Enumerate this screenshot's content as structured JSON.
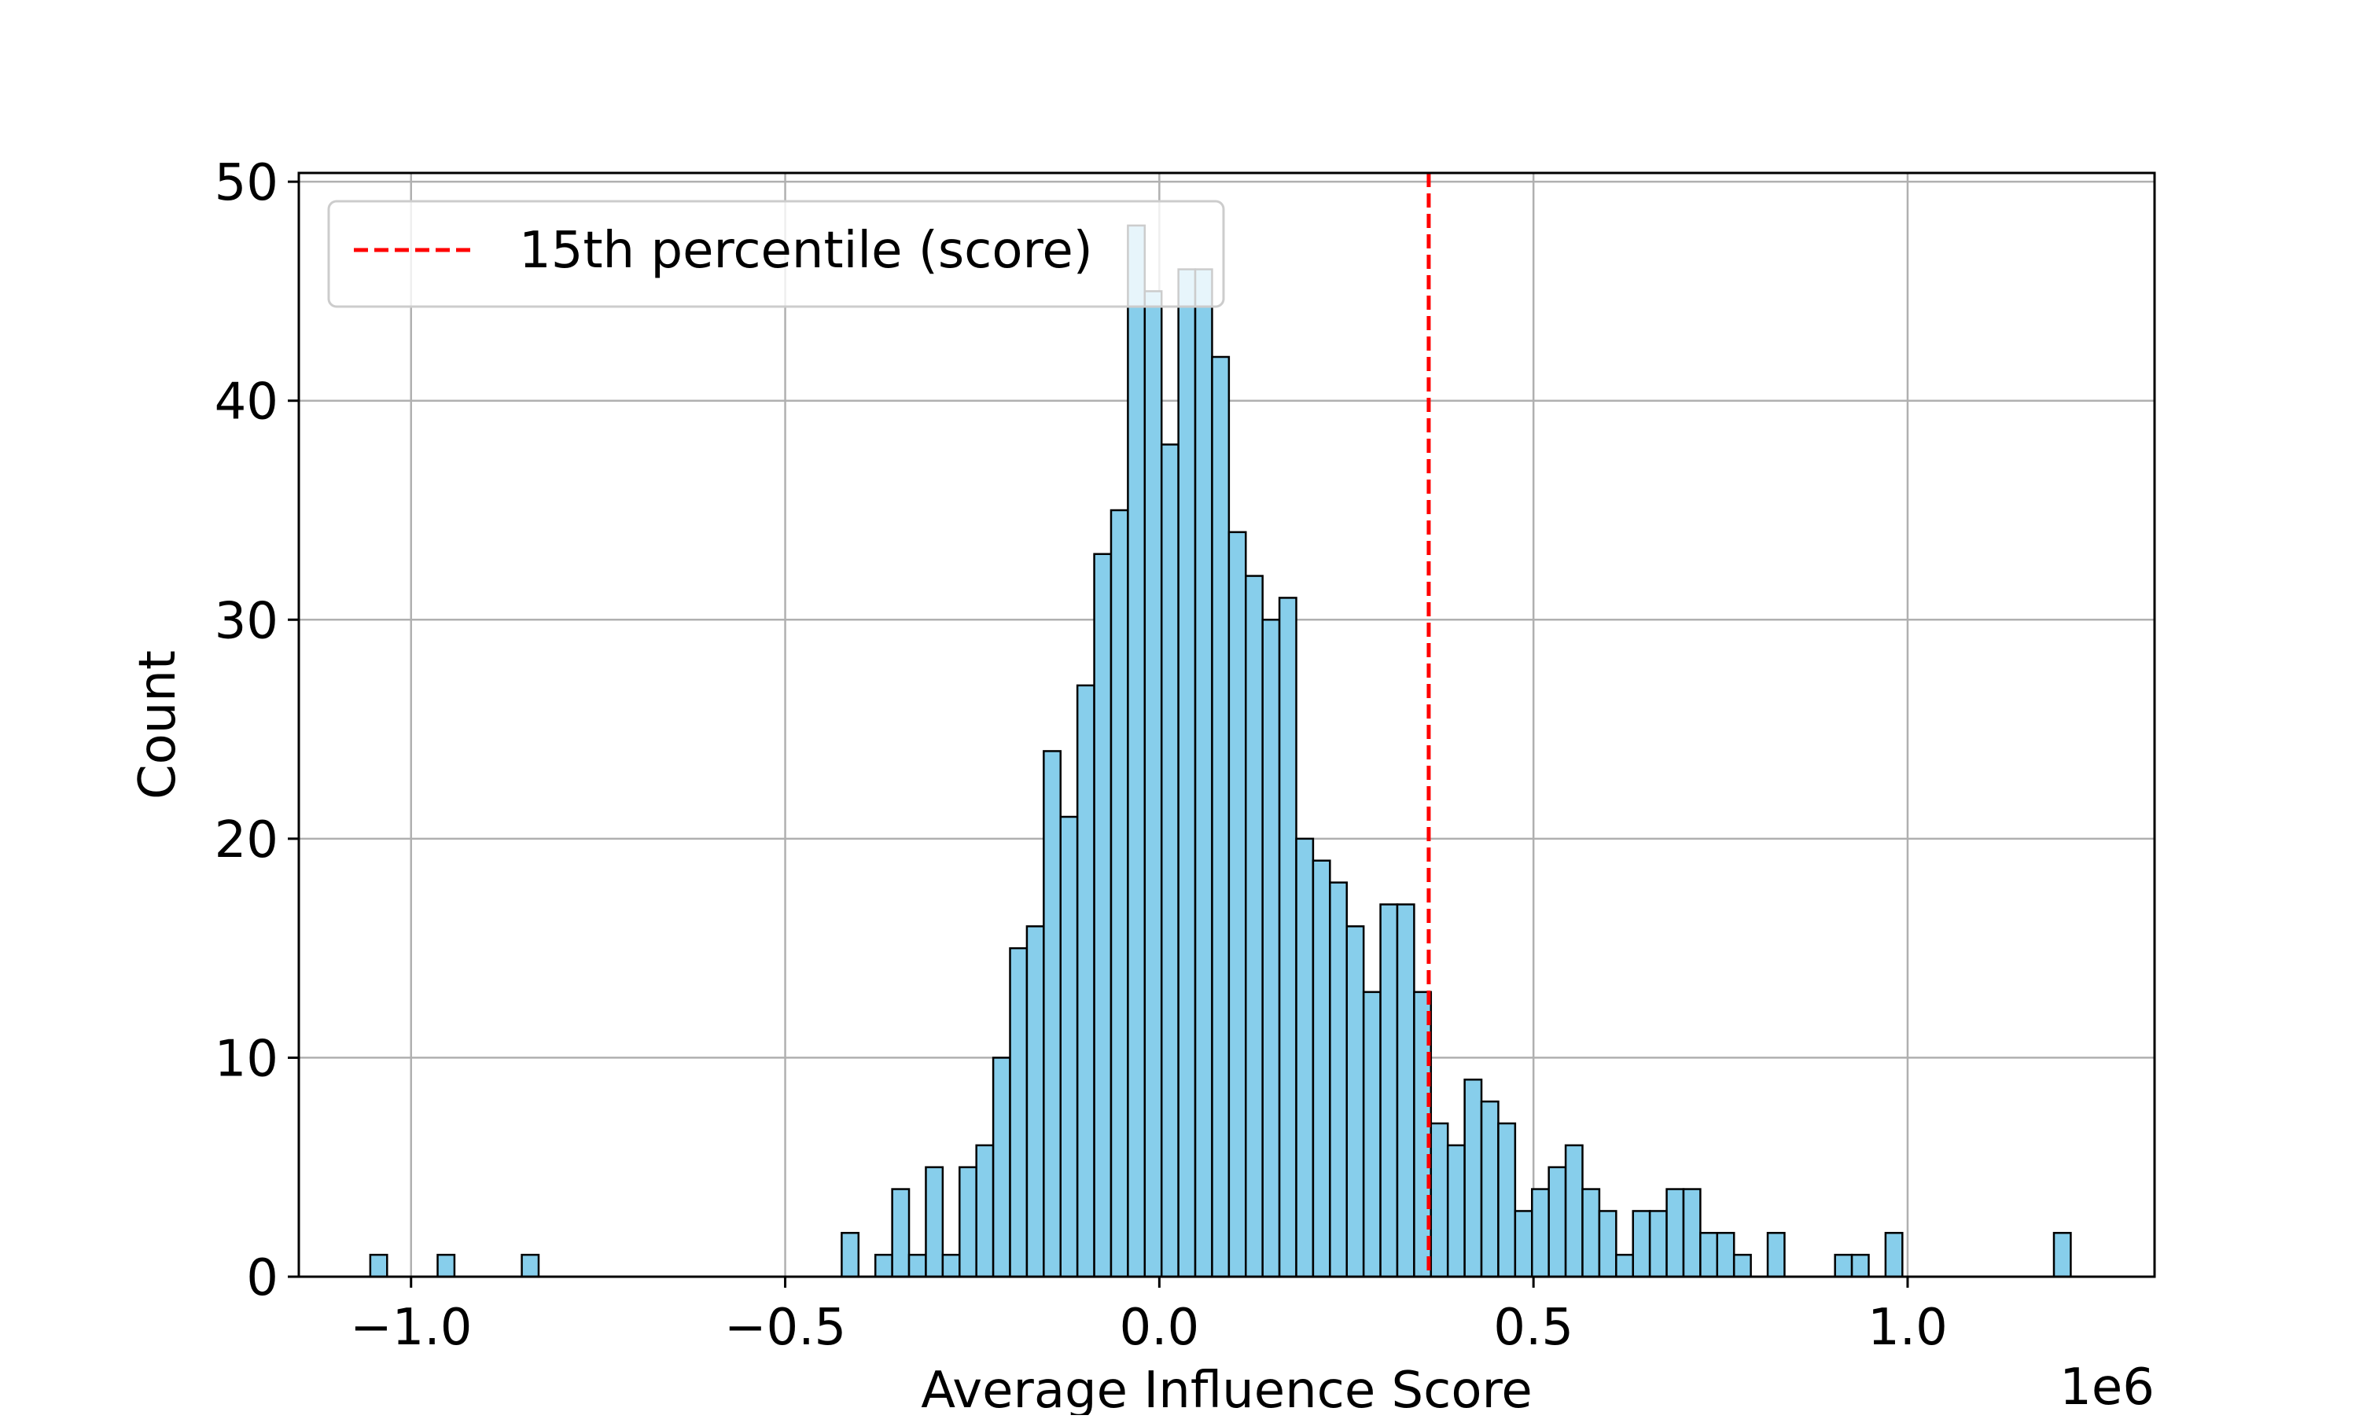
{
  "chart_data": {
    "type": "bar",
    "title": "",
    "xlabel": "Average Influence Score",
    "ylabel": "Count",
    "x_offset_label": "1e6",
    "xlim": [
      -1.15,
      1.33
    ],
    "ylim": [
      0,
      50.4
    ],
    "grid": true,
    "legend_placement": "top-left",
    "colors": {
      "bar_fill": "#87CEEB",
      "bar_edge": "#000000",
      "percentile_line": "#FF0000",
      "grid": "#B0B0B0"
    },
    "x_ticks": [
      {
        "value": -1.0,
        "label": "−1.0"
      },
      {
        "value": -0.5,
        "label": "−0.5"
      },
      {
        "value": 0.0,
        "label": "0.0"
      },
      {
        "value": 0.5,
        "label": "0.5"
      },
      {
        "value": 1.0,
        "label": "1.0"
      }
    ],
    "y_ticks": [
      {
        "value": 0,
        "label": "0"
      },
      {
        "value": 10,
        "label": "10"
      },
      {
        "value": 20,
        "label": "20"
      },
      {
        "value": 30,
        "label": "30"
      },
      {
        "value": 40,
        "label": "40"
      },
      {
        "value": 50,
        "label": "50"
      }
    ],
    "bin_start": -1.0545,
    "bin_width": 0.0225,
    "counts": [
      1,
      0,
      0,
      0,
      1,
      0,
      0,
      0,
      0,
      1,
      0,
      0,
      0,
      0,
      0,
      0,
      0,
      0,
      0,
      0,
      0,
      0,
      0,
      0,
      0,
      0,
      0,
      0,
      2,
      0,
      1,
      4,
      1,
      5,
      1,
      5,
      6,
      10,
      15,
      16,
      24,
      21,
      27,
      33,
      35,
      48,
      45,
      38,
      46,
      46,
      42,
      34,
      32,
      30,
      31,
      20,
      19,
      18,
      16,
      13,
      17,
      17,
      13,
      7,
      6,
      9,
      8,
      7,
      3,
      4,
      5,
      6,
      4,
      3,
      1,
      3,
      3,
      4,
      4,
      2,
      2,
      1,
      0,
      2,
      0,
      0,
      0,
      1,
      1,
      0,
      2,
      0,
      0,
      0,
      0,
      0,
      0,
      0,
      0,
      0,
      2
    ],
    "percentile_line": {
      "x": 0.36,
      "label": "15th percentile (score)"
    }
  }
}
